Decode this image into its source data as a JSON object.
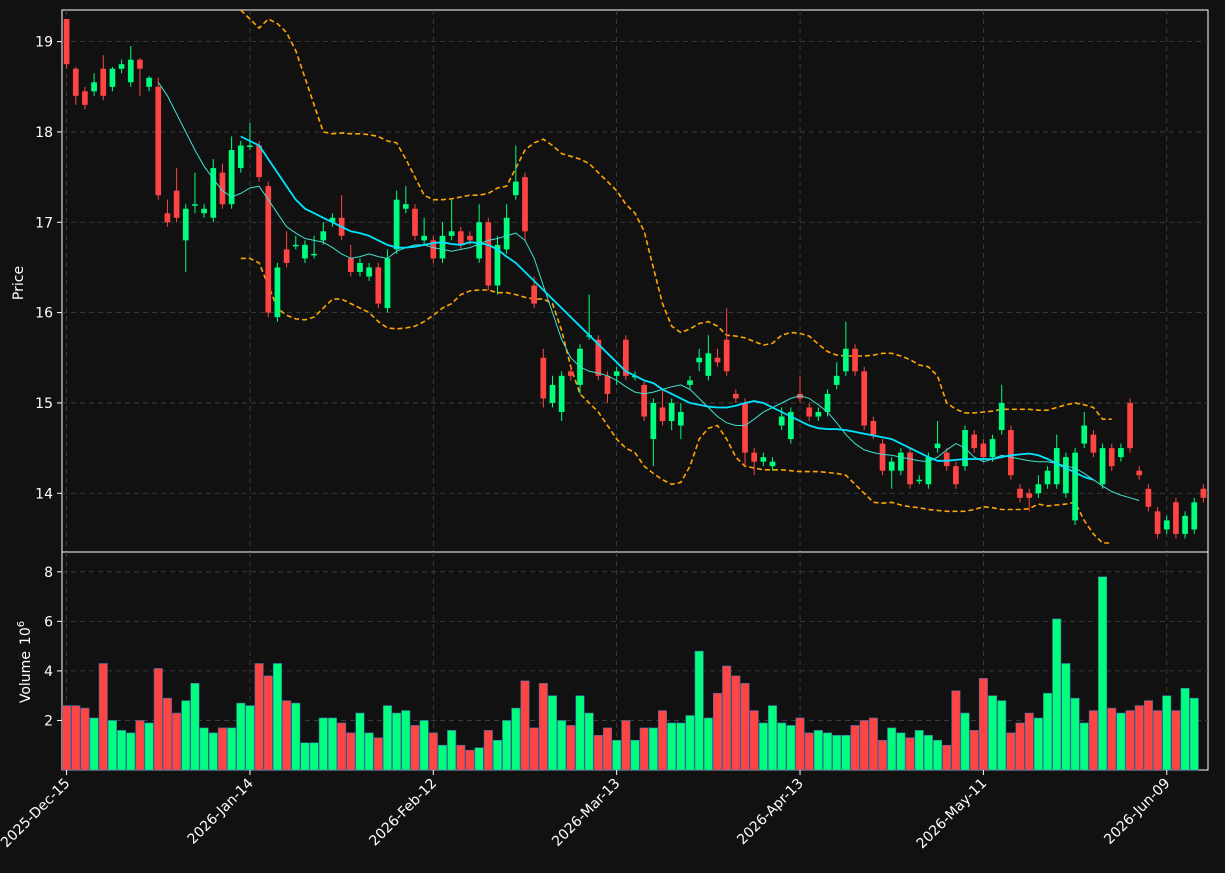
{
  "chart_data": {
    "type": "candlestick",
    "theme": {
      "background": "#111111",
      "up_color": "#00ff7f",
      "down_color": "#ff4444",
      "ma_long_color": "#00e5ff",
      "ma_short_color": "#40e0d0",
      "band_color": "#ffa500",
      "grid_color": "#444444"
    },
    "grid": true,
    "price_panel": {
      "ylabel": "Price",
      "ylim": [
        13.35,
        19.35
      ],
      "yticks": [
        "14",
        "15",
        "16",
        "17",
        "18",
        "19"
      ]
    },
    "volume_panel": {
      "ylabel": "Volume",
      "ylabel_exponent": "10",
      "ylabel_power": "6",
      "ylim": [
        0,
        8.8
      ],
      "yticks": [
        "2",
        "4",
        "6",
        "8"
      ]
    },
    "x_ticks": [
      {
        "index": 0,
        "label": "2025-Dec-15"
      },
      {
        "index": 20,
        "label": "2026-Jan-14"
      },
      {
        "index": 40,
        "label": "2026-Feb-12"
      },
      {
        "index": 60,
        "label": "2026-Mar-13"
      },
      {
        "index": 80,
        "label": "2026-Apr-13"
      },
      {
        "index": 100,
        "label": "2026-May-11"
      },
      {
        "index": 120,
        "label": "2026-Jun-09"
      }
    ],
    "candles": [
      [
        19.25,
        18.75,
        19.25,
        18.7
      ],
      [
        18.7,
        18.4,
        18.72,
        18.3
      ],
      [
        18.45,
        18.3,
        18.5,
        18.25
      ],
      [
        18.45,
        18.55,
        18.65,
        18.4
      ],
      [
        18.7,
        18.4,
        18.85,
        18.35
      ],
      [
        18.5,
        18.7,
        18.72,
        18.45
      ],
      [
        18.7,
        18.75,
        18.8,
        18.65
      ],
      [
        18.55,
        18.8,
        18.95,
        18.5
      ],
      [
        18.8,
        18.7,
        18.82,
        18.4
      ],
      [
        18.5,
        18.6,
        18.62,
        18.45
      ],
      [
        18.5,
        17.3,
        18.6,
        17.25
      ],
      [
        17.1,
        17.0,
        17.25,
        16.95
      ],
      [
        17.35,
        17.05,
        17.6,
        17.0
      ],
      [
        16.8,
        17.15,
        17.2,
        16.45
      ],
      [
        17.2,
        17.2,
        17.55,
        17.1
      ],
      [
        17.1,
        17.15,
        17.2,
        17.05
      ],
      [
        17.05,
        17.6,
        17.7,
        17.0
      ],
      [
        17.55,
        17.2,
        17.65,
        17.15
      ],
      [
        17.2,
        17.8,
        17.95,
        17.15
      ],
      [
        17.6,
        17.85,
        17.9,
        17.55
      ],
      [
        17.85,
        17.85,
        18.1,
        17.8
      ],
      [
        17.85,
        17.5,
        17.9,
        17.45
      ],
      [
        17.4,
        16.0,
        17.45,
        15.95
      ],
      [
        15.95,
        16.5,
        16.55,
        15.9
      ],
      [
        16.7,
        16.55,
        16.9,
        16.5
      ],
      [
        16.75,
        16.75,
        16.85,
        16.7
      ],
      [
        16.6,
        16.75,
        16.8,
        16.55
      ],
      [
        16.65,
        16.65,
        16.85,
        16.6
      ],
      [
        16.8,
        16.9,
        17.0,
        16.75
      ],
      [
        17.0,
        17.05,
        17.1,
        16.95
      ],
      [
        17.05,
        16.85,
        17.3,
        16.8
      ],
      [
        16.6,
        16.45,
        16.75,
        16.4
      ],
      [
        16.45,
        16.55,
        16.6,
        16.4
      ],
      [
        16.4,
        16.5,
        16.55,
        16.35
      ],
      [
        16.5,
        16.1,
        16.55,
        16.05
      ],
      [
        16.05,
        16.6,
        16.7,
        16.0
      ],
      [
        16.7,
        17.25,
        17.35,
        16.65
      ],
      [
        17.15,
        17.2,
        17.4,
        17.1
      ],
      [
        17.15,
        16.85,
        17.2,
        16.8
      ],
      [
        16.8,
        16.85,
        17.05,
        16.75
      ],
      [
        16.8,
        16.6,
        16.85,
        16.55
      ],
      [
        16.6,
        16.85,
        17.0,
        16.55
      ],
      [
        16.85,
        16.9,
        17.25,
        16.8
      ],
      [
        16.9,
        16.75,
        16.95,
        16.7
      ],
      [
        16.85,
        16.8,
        16.9,
        16.75
      ],
      [
        16.6,
        17.0,
        17.2,
        16.55
      ],
      [
        17.0,
        16.3,
        17.05,
        16.25
      ],
      [
        16.3,
        16.75,
        16.85,
        16.2
      ],
      [
        16.7,
        17.05,
        17.2,
        16.65
      ],
      [
        17.3,
        17.45,
        17.85,
        17.25
      ],
      [
        17.5,
        16.9,
        17.55,
        16.8
      ],
      [
        16.3,
        16.1,
        16.4,
        16.05
      ],
      [
        15.5,
        15.05,
        15.6,
        14.95
      ],
      [
        15.0,
        15.2,
        15.3,
        14.95
      ],
      [
        14.9,
        15.3,
        15.35,
        14.8
      ],
      [
        15.35,
        15.3,
        15.4,
        15.25
      ],
      [
        15.2,
        15.6,
        15.65,
        15.1
      ],
      [
        15.75,
        15.75,
        16.2,
        15.7
      ],
      [
        15.7,
        15.3,
        15.75,
        15.25
      ],
      [
        15.3,
        15.1,
        15.35,
        15.0
      ],
      [
        15.3,
        15.35,
        15.4,
        15.2
      ],
      [
        15.7,
        15.3,
        15.75,
        15.25
      ],
      [
        15.3,
        15.3,
        15.35,
        15.25
      ],
      [
        15.2,
        14.85,
        15.25,
        14.8
      ],
      [
        14.6,
        15.0,
        15.05,
        14.3
      ],
      [
        14.95,
        14.8,
        15.15,
        14.75
      ],
      [
        14.8,
        15.0,
        15.05,
        14.7
      ],
      [
        14.75,
        14.9,
        15.0,
        14.6
      ],
      [
        15.2,
        15.25,
        15.3,
        15.15
      ],
      [
        15.45,
        15.5,
        15.6,
        15.35
      ],
      [
        15.3,
        15.55,
        15.75,
        15.25
      ],
      [
        15.5,
        15.45,
        15.6,
        15.4
      ],
      [
        15.7,
        15.35,
        16.05,
        15.3
      ],
      [
        15.1,
        15.05,
        15.15,
        15.0
      ],
      [
        15.0,
        14.45,
        15.05,
        14.3
      ],
      [
        14.45,
        14.35,
        14.5,
        14.2
      ],
      [
        14.35,
        14.4,
        14.45,
        14.3
      ],
      [
        14.3,
        14.35,
        14.4,
        14.25
      ],
      [
        14.75,
        14.85,
        14.95,
        14.7
      ],
      [
        14.6,
        14.9,
        14.95,
        14.55
      ],
      [
        15.1,
        15.05,
        15.3,
        15.0
      ],
      [
        14.95,
        14.85,
        15.0,
        14.8
      ],
      [
        14.85,
        14.9,
        14.95,
        14.8
      ],
      [
        14.9,
        15.1,
        15.15,
        14.85
      ],
      [
        15.2,
        15.3,
        15.45,
        15.15
      ],
      [
        15.35,
        15.6,
        15.9,
        15.3
      ],
      [
        15.6,
        15.35,
        15.65,
        15.3
      ],
      [
        15.35,
        14.75,
        15.4,
        14.7
      ],
      [
        14.8,
        14.65,
        14.85,
        14.6
      ],
      [
        14.55,
        14.25,
        14.6,
        14.2
      ],
      [
        14.25,
        14.35,
        14.4,
        14.05
      ],
      [
        14.25,
        14.45,
        14.5,
        14.2
      ],
      [
        14.45,
        14.1,
        14.5,
        14.05
      ],
      [
        14.15,
        14.15,
        14.2,
        14.1
      ],
      [
        14.1,
        14.4,
        14.45,
        14.05
      ],
      [
        14.5,
        14.55,
        14.8,
        14.45
      ],
      [
        14.45,
        14.3,
        14.5,
        14.25
      ],
      [
        14.3,
        14.1,
        14.35,
        14.05
      ],
      [
        14.3,
        14.7,
        14.75,
        14.25
      ],
      [
        14.65,
        14.5,
        14.7,
        14.45
      ],
      [
        14.55,
        14.4,
        14.6,
        14.35
      ],
      [
        14.4,
        14.6,
        14.65,
        14.35
      ],
      [
        14.7,
        15.0,
        15.2,
        14.65
      ],
      [
        14.7,
        14.2,
        14.75,
        14.15
      ],
      [
        14.05,
        13.95,
        14.1,
        13.9
      ],
      [
        14.0,
        13.95,
        14.05,
        13.8
      ],
      [
        14.0,
        14.1,
        14.2,
        13.95
      ],
      [
        14.1,
        14.25,
        14.3,
        14.05
      ],
      [
        14.1,
        14.5,
        14.65,
        14.05
      ],
      [
        14.0,
        14.4,
        14.45,
        13.95
      ],
      [
        13.7,
        14.45,
        14.5,
        13.65
      ],
      [
        14.55,
        14.75,
        14.9,
        14.5
      ],
      [
        14.65,
        14.45,
        14.7,
        14.4
      ],
      [
        14.1,
        14.5,
        14.55,
        14.05
      ],
      [
        14.5,
        14.3,
        14.55,
        14.25
      ],
      [
        14.4,
        14.5,
        14.55,
        14.35
      ],
      [
        15.0,
        14.5,
        15.05,
        14.45
      ],
      [
        14.25,
        14.2,
        14.3,
        14.15
      ],
      [
        14.05,
        13.85,
        14.1,
        13.8
      ],
      [
        13.8,
        13.55,
        13.85,
        13.5
      ],
      [
        13.6,
        13.7,
        13.75,
        13.55
      ],
      [
        13.9,
        13.55,
        13.95,
        13.5
      ],
      [
        13.55,
        13.75,
        13.8,
        13.5
      ],
      [
        13.6,
        13.9,
        13.95,
        13.55
      ],
      [
        14.05,
        13.95,
        14.1,
        13.9
      ]
    ],
    "volumes": [
      2.6,
      2.6,
      2.5,
      2.1,
      4.3,
      2.0,
      1.6,
      1.5,
      2.0,
      1.9,
      4.1,
      2.9,
      2.3,
      2.8,
      3.5,
      1.7,
      1.5,
      1.7,
      1.7,
      2.7,
      2.6,
      4.3,
      3.8,
      4.3,
      2.8,
      2.7,
      1.1,
      1.1,
      2.1,
      2.1,
      1.9,
      1.5,
      2.3,
      1.5,
      1.3,
      2.6,
      2.3,
      2.4,
      1.8,
      2.0,
      1.5,
      1.0,
      1.6,
      1.0,
      0.8,
      0.9,
      1.6,
      1.2,
      2.0,
      2.5,
      3.6,
      1.7,
      3.5,
      3.0,
      2.0,
      1.8,
      3.0,
      2.3,
      1.4,
      1.7,
      1.2,
      2.0,
      1.2,
      1.7,
      1.7,
      2.4,
      1.9,
      1.9,
      2.2,
      4.8,
      2.1,
      3.1,
      4.2,
      3.8,
      3.5,
      2.4,
      1.9,
      2.6,
      1.9,
      1.8,
      2.1,
      1.5,
      1.6,
      1.5,
      1.4,
      1.4,
      1.8,
      2.0,
      2.1,
      1.2,
      1.7,
      1.5,
      1.3,
      1.6,
      1.4,
      1.2,
      1.0,
      3.2,
      2.3,
      1.6,
      3.7,
      3.0,
      2.8,
      1.5,
      1.9,
      2.3,
      2.1,
      3.1,
      6.1,
      4.3,
      2.9,
      1.9,
      2.4,
      7.8,
      2.5,
      2.3,
      2.4,
      2.6,
      2.8,
      2.4,
      3.0,
      2.4,
      3.3,
      2.9
    ],
    "overlays": {
      "ma_long_start": 19,
      "ma_long": [
        17.95,
        17.9,
        17.85,
        17.7,
        17.55,
        17.4,
        17.25,
        17.15,
        17.1,
        17.05,
        17.0,
        16.95,
        16.9,
        16.88,
        16.85,
        16.8,
        16.75,
        16.72,
        16.72,
        16.73,
        16.75,
        16.77,
        16.78,
        16.76,
        16.75,
        16.78,
        16.77,
        16.75,
        16.7,
        16.62,
        16.55,
        16.45,
        16.35,
        16.25,
        16.15,
        16.05,
        15.95,
        15.85,
        15.75,
        15.65,
        15.55,
        15.45,
        15.35,
        15.3,
        15.25,
        15.22,
        15.15,
        15.1,
        15.05,
        15.0,
        14.98,
        14.96,
        14.95,
        14.95,
        14.97,
        15.0,
        15.02,
        15.0,
        14.95,
        14.9,
        14.85,
        14.8,
        14.75,
        14.72,
        14.71,
        14.71,
        14.7,
        14.68,
        14.66,
        14.64,
        14.62,
        14.6,
        14.55,
        14.5,
        14.45,
        14.4,
        14.36,
        14.36,
        14.37,
        14.38,
        14.38,
        14.38,
        14.38,
        14.4,
        14.42,
        14.43,
        14.44,
        14.42,
        14.38,
        14.33,
        14.28,
        14.23,
        14.18,
        14.15
      ],
      "ma_short_start": 10,
      "ma_short": [
        18.55,
        18.4,
        18.2,
        18.0,
        17.8,
        17.62,
        17.48,
        17.35,
        17.28,
        17.32,
        17.38,
        17.4,
        17.25,
        17.1,
        16.95,
        16.88,
        16.82,
        16.8,
        16.78,
        16.72,
        16.65,
        16.6,
        16.62,
        16.65,
        16.62,
        16.6,
        16.68,
        16.72,
        16.75,
        16.75,
        16.72,
        16.7,
        16.68,
        16.7,
        16.72,
        16.76,
        16.8,
        16.82,
        16.85,
        16.88,
        16.8,
        16.6,
        16.3,
        16.0,
        15.7,
        15.5,
        15.4,
        15.35,
        15.33,
        15.3,
        15.25,
        15.18,
        15.12,
        15.1,
        15.12,
        15.15,
        15.18,
        15.2,
        15.15,
        15.05,
        14.95,
        14.85,
        14.78,
        14.75,
        14.75,
        14.82,
        14.9,
        14.95,
        15.0,
        15.05,
        15.08,
        15.05,
        14.98,
        14.9,
        14.78,
        14.65,
        14.55,
        14.48,
        14.45,
        14.43,
        14.42,
        14.4,
        14.38,
        14.36,
        14.35,
        14.4,
        14.48,
        14.55,
        14.5,
        14.4,
        14.35,
        14.38,
        14.42,
        14.4,
        14.38,
        14.36,
        14.35,
        14.35,
        14.33,
        14.3,
        14.28,
        14.22,
        14.15,
        14.08,
        14.02,
        13.98,
        13.95,
        13.92
      ],
      "band_upper_start": 19,
      "band_upper": [
        19.35,
        19.25,
        19.15,
        19.25,
        19.2,
        19.1,
        18.9,
        18.6,
        18.3,
        18.0,
        17.98,
        17.99,
        17.98,
        17.98,
        17.97,
        17.95,
        17.9,
        17.88,
        17.7,
        17.5,
        17.3,
        17.25,
        17.25,
        17.26,
        17.28,
        17.3,
        17.3,
        17.32,
        17.38,
        17.4,
        17.6,
        17.8,
        17.88,
        17.92,
        17.85,
        17.76,
        17.73,
        17.7,
        17.65,
        17.55,
        17.45,
        17.35,
        17.2,
        17.1,
        16.9,
        16.5,
        16.1,
        15.85,
        15.78,
        15.82,
        15.88,
        15.9,
        15.85,
        15.75,
        15.74,
        15.72,
        15.68,
        15.64,
        15.66,
        15.75,
        15.78,
        15.77,
        15.74,
        15.65,
        15.57,
        15.53,
        15.52,
        15.52,
        15.52,
        15.53,
        15.55,
        15.55,
        15.52,
        15.48,
        15.42,
        15.4,
        15.3,
        15.0,
        14.93,
        14.89,
        14.89,
        14.9,
        14.91,
        14.93,
        14.93,
        14.93,
        14.93,
        14.92,
        14.92,
        14.95,
        14.98,
        15.0,
        14.98,
        14.95,
        14.82,
        14.82
      ],
      "band_lower_start": 19,
      "band_lower": [
        16.6,
        16.6,
        16.55,
        16.3,
        16.05,
        15.97,
        15.93,
        15.92,
        15.95,
        16.05,
        16.15,
        16.15,
        16.1,
        16.05,
        16.0,
        15.9,
        15.83,
        15.82,
        15.83,
        15.85,
        15.9,
        15.97,
        16.05,
        16.1,
        16.2,
        16.24,
        16.25,
        16.25,
        16.22,
        16.22,
        16.2,
        16.17,
        16.15,
        16.15,
        16.1,
        15.8,
        15.4,
        15.1,
        15.0,
        14.9,
        14.75,
        14.6,
        14.5,
        14.45,
        14.3,
        14.22,
        14.15,
        14.1,
        14.12,
        14.3,
        14.6,
        14.72,
        14.75,
        14.6,
        14.4,
        14.3,
        14.28,
        14.26,
        14.26,
        14.26,
        14.25,
        14.24,
        14.24,
        14.24,
        14.23,
        14.22,
        14.2,
        14.1,
        14.0,
        13.9,
        13.89,
        13.9,
        13.87,
        13.85,
        13.84,
        13.82,
        13.81,
        13.8,
        13.8,
        13.8,
        13.82,
        13.85,
        13.84,
        13.82,
        13.82,
        13.82,
        13.83,
        13.88,
        13.86,
        13.87,
        13.88,
        13.9,
        13.7,
        13.55,
        13.45,
        13.45
      ]
    }
  }
}
